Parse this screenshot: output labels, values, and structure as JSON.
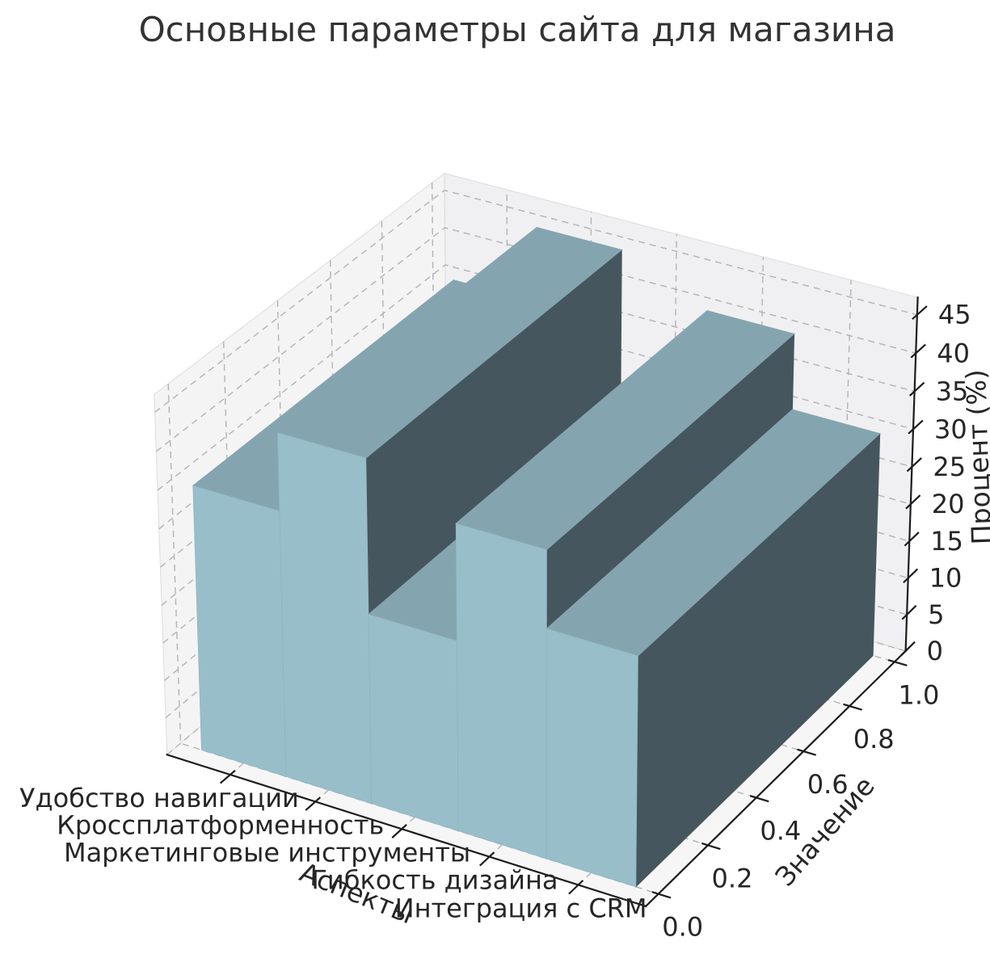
{
  "title": "Основные параметры сайта для магазина",
  "chart_data": {
    "type": "bar3d",
    "categories": [
      "Удобство навигации",
      "Кроссплатформенность",
      "Маркетинговые инструменты",
      "Гибкость дизайна",
      "Интеграция с CRM"
    ],
    "values": [
      35,
      45,
      25,
      40,
      30
    ],
    "xlabel": "Аспекты",
    "ylabel": "Значение",
    "zlabel": "Процент (%)",
    "y_ticks": [
      0.0,
      0.2,
      0.4,
      0.6,
      0.8,
      1.0
    ],
    "z_ticks": [
      0,
      5,
      10,
      15,
      20,
      25,
      30,
      35,
      40,
      45
    ],
    "ylim": [
      0.0,
      1.0
    ],
    "zlim": [
      0,
      47.25
    ],
    "grid": "dashed",
    "legend": "none",
    "view": {
      "elev": 30,
      "azim": -60
    },
    "colors": {
      "bar_base": "#add8e6",
      "bar_top": "#84a5b0",
      "bar_front": "#98beca",
      "bar_side": "#46565e",
      "bar_front_edge": "#8fb6c3",
      "pane_left": "#f4f4f5",
      "pane_right": "#f0f0f2",
      "pane_floor": "#f6f6f7",
      "pane_edge": "#dcdcdc",
      "grid": "#b3b3b3",
      "axis": "#1c1c1c",
      "text": "#262626",
      "title": "#333333"
    }
  }
}
